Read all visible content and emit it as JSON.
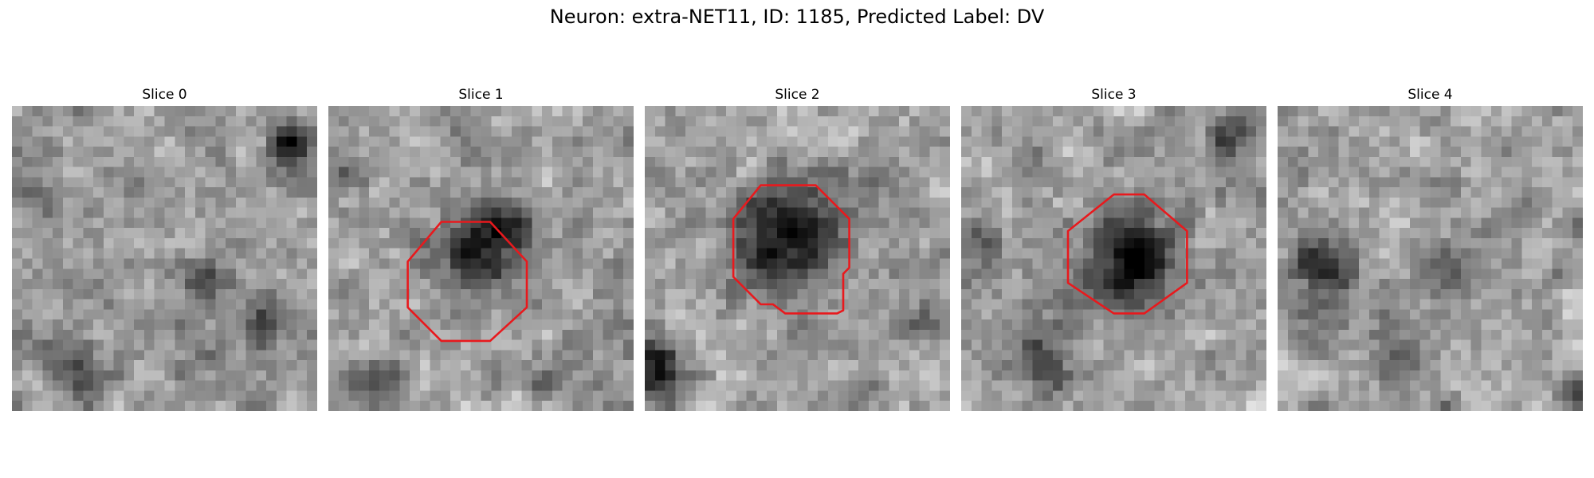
{
  "figure": {
    "title": "Neuron: extra-NET11, ID: 1185, Predicted Label: DV"
  },
  "colors": {
    "background": "#ffffff",
    "roi_outline": "#e8191d",
    "colormap": "gray"
  },
  "slices": [
    {
      "title": "Slice 0",
      "seed": 11,
      "dark_spots": [
        [
          0.91,
          0.12,
          0.07,
          0.9
        ],
        [
          0.63,
          0.57,
          0.09,
          0.55
        ],
        [
          0.82,
          0.72,
          0.08,
          0.5
        ],
        [
          0.2,
          0.88,
          0.1,
          0.35
        ],
        [
          0.08,
          0.3,
          0.1,
          0.3
        ]
      ],
      "roi": null
    },
    {
      "title": "Slice 1",
      "seed": 23,
      "dark_spots": [
        [
          0.5,
          0.47,
          0.13,
          0.85
        ],
        [
          0.62,
          0.38,
          0.08,
          0.5
        ],
        [
          0.15,
          0.9,
          0.08,
          0.6
        ],
        [
          0.05,
          0.2,
          0.08,
          0.35
        ],
        [
          0.7,
          0.9,
          0.07,
          0.35
        ]
      ],
      "roi": [
        [
          0.37,
          0.38
        ],
        [
          0.53,
          0.38
        ],
        [
          0.65,
          0.51
        ],
        [
          0.65,
          0.66
        ],
        [
          0.53,
          0.77
        ],
        [
          0.37,
          0.77
        ],
        [
          0.26,
          0.66
        ],
        [
          0.26,
          0.51
        ]
      ]
    },
    {
      "title": "Slice 2",
      "seed": 37,
      "dark_spots": [
        [
          0.47,
          0.43,
          0.16,
          1.0
        ],
        [
          0.05,
          0.87,
          0.08,
          0.85
        ],
        [
          0.9,
          0.72,
          0.08,
          0.35
        ],
        [
          0.8,
          0.2,
          0.07,
          0.3
        ]
      ],
      "roi": [
        [
          0.38,
          0.26
        ],
        [
          0.56,
          0.26
        ],
        [
          0.67,
          0.37
        ],
        [
          0.67,
          0.53
        ],
        [
          0.65,
          0.55
        ],
        [
          0.65,
          0.67
        ],
        [
          0.63,
          0.68
        ],
        [
          0.63,
          0.68
        ],
        [
          0.46,
          0.68
        ],
        [
          0.42,
          0.65
        ],
        [
          0.38,
          0.65
        ],
        [
          0.29,
          0.56
        ],
        [
          0.29,
          0.37
        ]
      ]
    },
    {
      "title": "Slice 3",
      "seed": 53,
      "dark_spots": [
        [
          0.55,
          0.51,
          0.15,
          1.0
        ],
        [
          0.25,
          0.82,
          0.1,
          0.5
        ],
        [
          0.88,
          0.12,
          0.08,
          0.45
        ],
        [
          0.05,
          0.45,
          0.08,
          0.35
        ]
      ],
      "roi": [
        [
          0.5,
          0.29
        ],
        [
          0.6,
          0.29
        ],
        [
          0.74,
          0.41
        ],
        [
          0.74,
          0.58
        ],
        [
          0.6,
          0.68
        ],
        [
          0.5,
          0.68
        ],
        [
          0.35,
          0.58
        ],
        [
          0.35,
          0.41
        ]
      ]
    },
    {
      "title": "Slice 4",
      "seed": 71,
      "dark_spots": [
        [
          0.14,
          0.53,
          0.1,
          0.7
        ],
        [
          0.55,
          0.55,
          0.08,
          0.45
        ],
        [
          0.97,
          0.93,
          0.06,
          0.55
        ],
        [
          0.4,
          0.8,
          0.08,
          0.3
        ]
      ],
      "roi": null
    }
  ]
}
